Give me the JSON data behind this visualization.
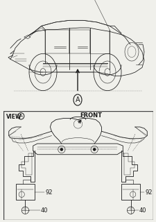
{
  "bg_color": "#f0f0eb",
  "line_color": "#1a1a1a",
  "border_color": "#444444",
  "view_label": "VIEW",
  "circle_label": "A",
  "front_label": "FRONT",
  "label_92_left": "92",
  "label_92_right": "92",
  "label_40_left": "40",
  "label_40_right": "40",
  "figsize": [
    2.25,
    3.2
  ],
  "dpi": 100
}
